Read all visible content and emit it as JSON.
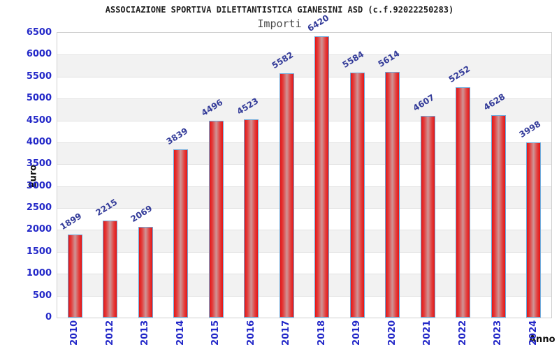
{
  "chart_data": {
    "type": "bar",
    "title": "ASSOCIAZIONE SPORTIVA DILETTANTISTICA GIANESINI ASD (c.f.92022250283)",
    "subtitle": "Importi",
    "xlabel": "Anno",
    "ylabel": "Euro",
    "categories": [
      "2010",
      "2012",
      "2013",
      "2014",
      "2015",
      "2016",
      "2017",
      "2018",
      "2019",
      "2020",
      "2021",
      "2022",
      "2023",
      "2024"
    ],
    "values": [
      1899,
      2215,
      2069,
      3839,
      4496,
      4523,
      5582,
      6420,
      5584,
      5614,
      4607,
      5252,
      4628,
      3998
    ],
    "ylim": [
      0,
      6500
    ],
    "ytick_step": 500,
    "grid": true,
    "row_banding": true,
    "legend": "none",
    "value_labels_rotated": true
  },
  "colors": {
    "background": "#ffffff",
    "band_alt": "#f2f2f2",
    "gridline": "#e2e2e2",
    "plot_border": "#cfcfcf",
    "bar_edge_red": "#e51414",
    "bar_mid_red": "#cf9596",
    "bar_inner_red": "#e2403f",
    "bar_border_blue": "#6ea9da",
    "tick_blue": "#2328c8",
    "value_navy": "#333b99",
    "title_color": "#1f1f1f",
    "subtitle_color": "#4a4a4a"
  }
}
